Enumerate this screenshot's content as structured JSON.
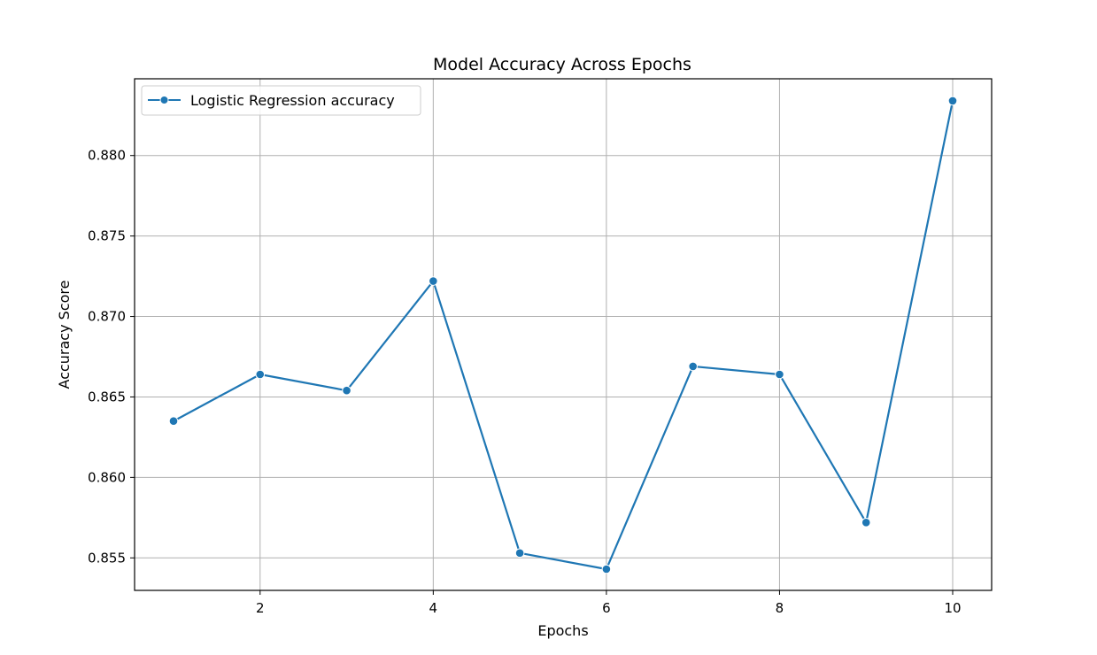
{
  "chart_data": {
    "type": "line",
    "title": "Model Accuracy Across Epochs",
    "xlabel": "Epochs",
    "ylabel": "Accuracy Score",
    "xlim": [
      0.55,
      10.45
    ],
    "ylim": [
      0.85298,
      0.88477
    ],
    "xticks": [
      2,
      4,
      6,
      8,
      10
    ],
    "xtick_labels": [
      "2",
      "4",
      "6",
      "8",
      "10"
    ],
    "yticks": [
      0.855,
      0.86,
      0.865,
      0.87,
      0.875,
      0.88
    ],
    "ytick_labels": [
      "0.855",
      "0.860",
      "0.865",
      "0.870",
      "0.875",
      "0.880"
    ],
    "grid": true,
    "legend_position": "top-left",
    "series": [
      {
        "name": "Logistic Regression accuracy",
        "color": "#1f77b4",
        "marker": "circle",
        "x": [
          1,
          2,
          3,
          4,
          5,
          6,
          7,
          8,
          9,
          10
        ],
        "y": [
          0.8635,
          0.8664,
          0.8654,
          0.8722,
          0.8553,
          0.8543,
          0.8669,
          0.8664,
          0.8572,
          0.8834
        ]
      }
    ]
  }
}
